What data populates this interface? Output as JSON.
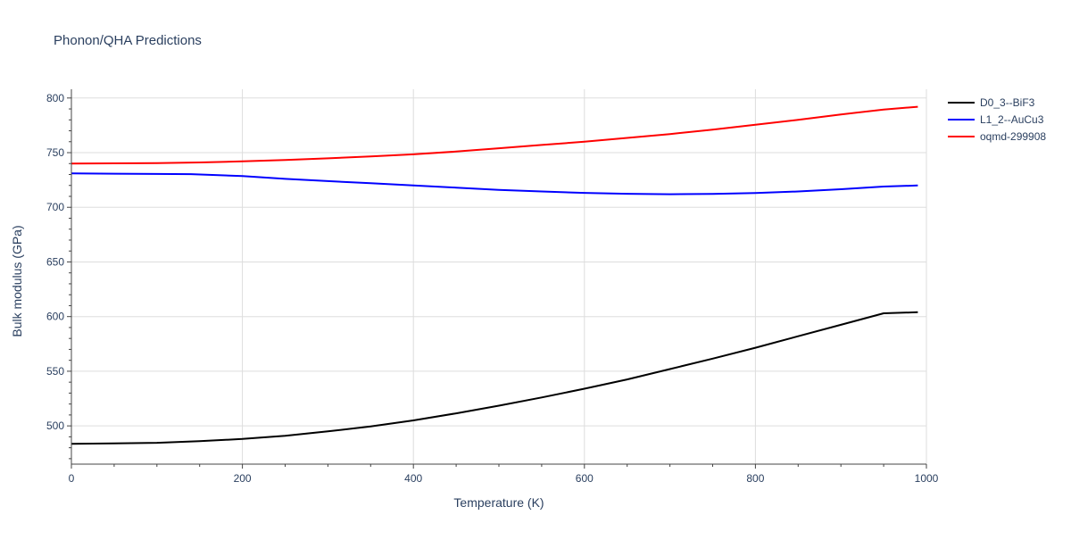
{
  "chart_data": {
    "type": "line",
    "title": "Phonon/QHA Predictions",
    "xlabel": "Temperature (K)",
    "ylabel": "Bulk modulus (GPa)",
    "xlim": [
      0,
      1000
    ],
    "ylim": [
      465,
      808
    ],
    "xticks": [
      0,
      200,
      400,
      600,
      800,
      1000
    ],
    "yticks": [
      500,
      550,
      600,
      650,
      700,
      750,
      800
    ],
    "grid": true,
    "legend_position": "top-right",
    "series": [
      {
        "name": "D0_3--BiF3",
        "color": "#000000",
        "x": [
          0,
          50,
          100,
          150,
          200,
          250,
          300,
          350,
          400,
          450,
          500,
          550,
          600,
          650,
          700,
          750,
          800,
          850,
          900,
          950,
          990
        ],
        "y": [
          483.5,
          484,
          484.5,
          486,
          488,
          491,
          495,
          499.5,
          505,
          511.5,
          518.5,
          526,
          534,
          542.5,
          552,
          561.5,
          571.5,
          582,
          592.5,
          603,
          604
        ]
      },
      {
        "name": "L1_2--AuCu3",
        "color": "#0000ff",
        "x": [
          0,
          100,
          140,
          200,
          250,
          300,
          350,
          400,
          450,
          500,
          550,
          600,
          650,
          700,
          750,
          800,
          850,
          900,
          950,
          990
        ],
        "y": [
          731,
          730.5,
          730.3,
          728.5,
          726,
          724,
          722,
          720,
          718,
          716,
          714.5,
          713.2,
          712.4,
          712,
          712.3,
          713,
          714.5,
          716.5,
          719,
          720
        ]
      },
      {
        "name": "oqmd-299908",
        "color": "#ff0000",
        "x": [
          0,
          50,
          100,
          150,
          200,
          250,
          300,
          350,
          400,
          450,
          500,
          550,
          600,
          650,
          700,
          750,
          800,
          850,
          900,
          950,
          990
        ],
        "y": [
          740,
          740.2,
          740.5,
          741,
          742,
          743.2,
          744.8,
          746.5,
          748.5,
          751,
          754,
          757,
          760,
          763.5,
          767,
          771,
          775.5,
          780,
          785,
          789.5,
          792
        ]
      }
    ]
  }
}
